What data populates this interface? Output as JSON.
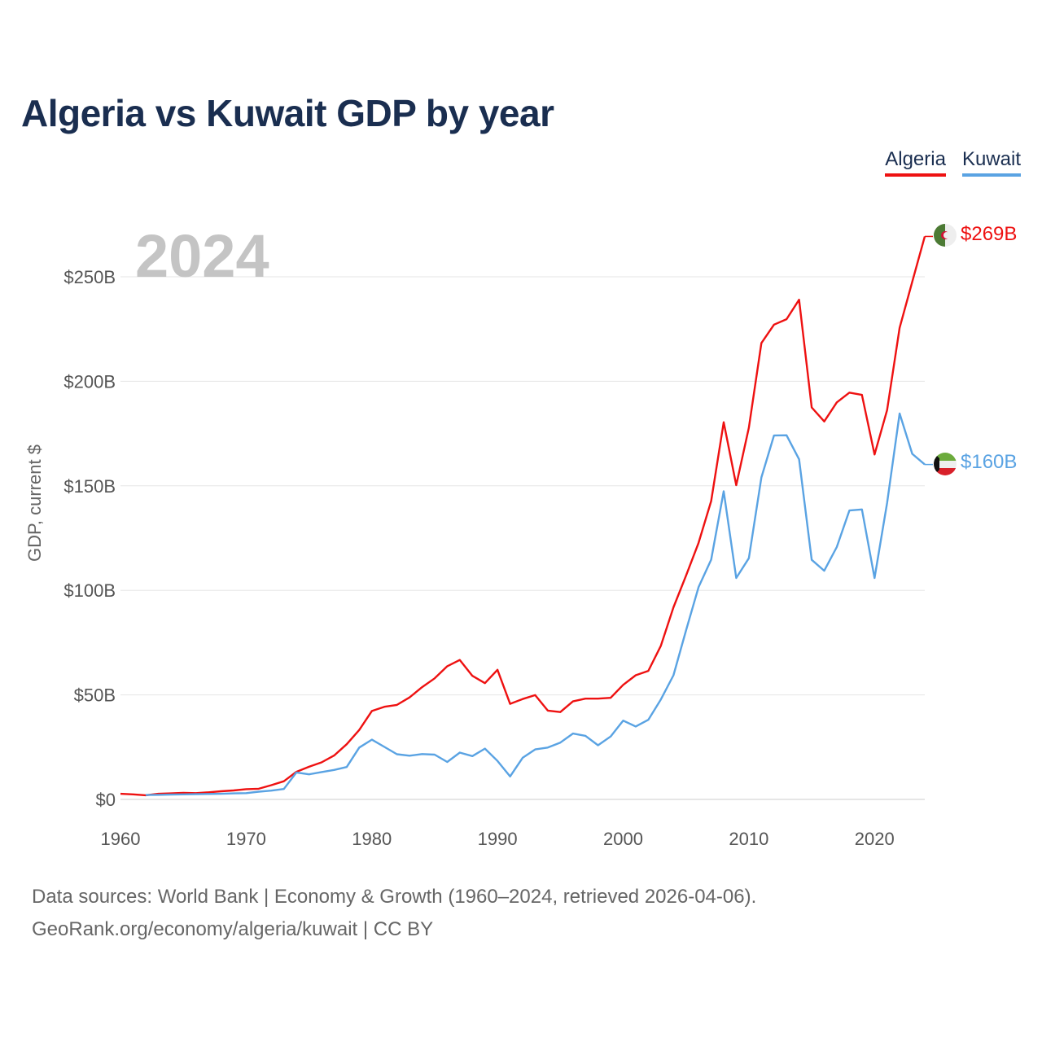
{
  "title": "Algeria vs Kuwait GDP by year",
  "current_year": "2024",
  "legend": [
    {
      "name": "Algeria",
      "color": "#ee1111"
    },
    {
      "name": "Kuwait",
      "color": "#5aa3e3"
    }
  ],
  "source": {
    "line1": "Data sources: World Bank | Economy & Growth (1960–2024, retrieved 2026-04-06).",
    "line2": "GeoRank.org/economy/algeria/kuwait | CC BY"
  },
  "chart_data": {
    "type": "line",
    "title": "Algeria vs Kuwait GDP by year",
    "xlabel": "",
    "ylabel": "GDP, current $",
    "xlim": [
      1960,
      2024
    ],
    "ylim": [
      0,
      262
    ],
    "x_ticks": [
      1960,
      1970,
      1980,
      1990,
      2000,
      2010,
      2020
    ],
    "y_ticks": [
      {
        "value": 0,
        "label": "$0"
      },
      {
        "value": 50,
        "label": "$50B"
      },
      {
        "value": 100,
        "label": "$100B"
      },
      {
        "value": 150,
        "label": "$150B"
      },
      {
        "value": 200,
        "label": "$200B"
      },
      {
        "value": 250,
        "label": "$250B"
      }
    ],
    "grid": true,
    "legend_position": "top-right",
    "series": [
      {
        "name": "Algeria",
        "color": "#ee1111",
        "end_label": "$269B",
        "x": [
          1960,
          1961,
          1962,
          1963,
          1964,
          1965,
          1966,
          1967,
          1968,
          1969,
          1970,
          1971,
          1972,
          1973,
          1974,
          1975,
          1976,
          1977,
          1978,
          1979,
          1980,
          1981,
          1982,
          1983,
          1984,
          1985,
          1986,
          1987,
          1988,
          1989,
          1990,
          1991,
          1992,
          1993,
          1994,
          1995,
          1996,
          1997,
          1998,
          1999,
          2000,
          2001,
          2002,
          2003,
          2004,
          2005,
          2006,
          2007,
          2008,
          2009,
          2010,
          2011,
          2012,
          2013,
          2014,
          2015,
          2016,
          2017,
          2018,
          2019,
          2020,
          2021,
          2022,
          2023,
          2024
        ],
        "values": [
          2.7,
          2.4,
          2.0,
          2.7,
          2.9,
          3.1,
          3.0,
          3.4,
          3.9,
          4.3,
          4.9,
          5.1,
          6.8,
          8.7,
          13.2,
          15.6,
          17.7,
          21.0,
          26.4,
          33.2,
          42.3,
          44.3,
          45.2,
          48.8,
          53.7,
          57.9,
          63.7,
          66.7,
          59.1,
          55.6,
          62.0,
          45.7,
          48.0,
          49.9,
          42.5,
          41.8,
          46.9,
          48.2,
          48.2,
          48.6,
          54.8,
          59.4,
          61.5,
          73.5,
          91.9,
          107.0,
          122.7,
          142.7,
          180.4,
          150.3,
          177.8,
          218.3,
          227.1,
          229.7,
          239.0,
          187.5,
          180.8,
          189.9,
          194.6,
          193.5,
          165.0,
          186.2,
          225.6,
          247.6,
          269.3
        ]
      },
      {
        "name": "Kuwait",
        "color": "#5aa3e3",
        "end_label": "$160B",
        "x": [
          1962,
          1963,
          1964,
          1965,
          1966,
          1967,
          1968,
          1969,
          1970,
          1971,
          1972,
          1973,
          1974,
          1975,
          1976,
          1977,
          1978,
          1979,
          1980,
          1981,
          1982,
          1983,
          1984,
          1985,
          1986,
          1987,
          1988,
          1989,
          1990,
          1991,
          1992,
          1993,
          1994,
          1995,
          1996,
          1997,
          1998,
          1999,
          2000,
          2001,
          2002,
          2003,
          2004,
          2005,
          2006,
          2007,
          2008,
          2009,
          2010,
          2011,
          2012,
          2013,
          2014,
          2015,
          2016,
          2017,
          2018,
          2019,
          2020,
          2021,
          2022,
          2023,
          2024
        ],
        "values": [
          2.1,
          2.2,
          2.3,
          2.4,
          2.5,
          2.6,
          2.7,
          2.9,
          3.0,
          3.7,
          4.2,
          5.0,
          12.9,
          12.0,
          13.1,
          14.1,
          15.5,
          24.8,
          28.6,
          25.1,
          21.6,
          20.9,
          21.7,
          21.4,
          17.9,
          22.4,
          20.7,
          24.3,
          18.4,
          11.0,
          19.9,
          23.9,
          24.8,
          27.2,
          31.5,
          30.4,
          25.9,
          30.1,
          37.7,
          34.9,
          38.1,
          47.8,
          59.4,
          80.8,
          101.5,
          114.7,
          147.4,
          105.9,
          115.4,
          154.0,
          174.1,
          174.2,
          162.7,
          114.6,
          109.4,
          120.7,
          138.2,
          138.7,
          105.9,
          141.8,
          184.6,
          165.3,
          160.2
        ]
      }
    ]
  }
}
